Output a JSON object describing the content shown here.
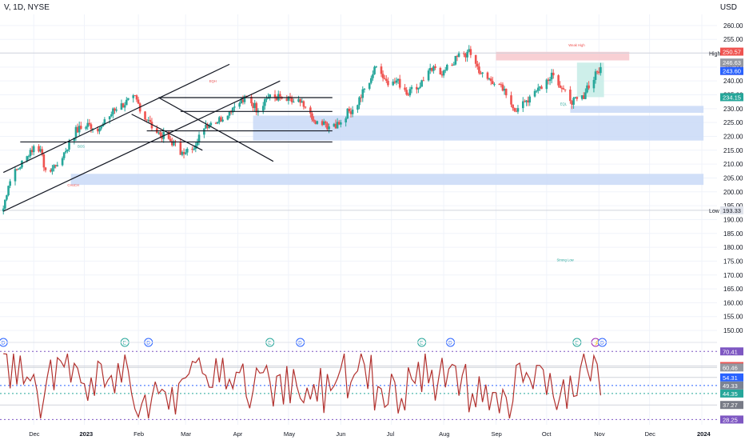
{
  "header": {
    "symbol_label": "V, 1D, NYSE",
    "currency": "USD"
  },
  "colors": {
    "up": "#26a69a",
    "down": "#ef5350",
    "rsi_line": "#b2322f",
    "supply_zone": "#f7c8cc",
    "demand_zone": "#c9d9f7",
    "target_zone": "#c5ece6",
    "high_line": "#d1d4dc",
    "grid": "#f0f3fa"
  },
  "chart_data": {
    "type": "candlestick",
    "price_axis": {
      "range": [
        148,
        264
      ],
      "ticks": [
        150,
        155,
        160,
        165,
        170,
        175,
        180,
        185,
        190,
        195,
        200,
        205,
        210,
        215,
        220,
        225,
        230,
        235,
        240,
        245,
        250,
        255,
        260
      ],
      "tick_labels": [
        "150.00",
        "155.00",
        "160.00",
        "165.00",
        "170.00",
        "175.00",
        "180.00",
        "185.00",
        "190.00",
        "195.00",
        "200.00",
        "205.00",
        "210.00",
        "215.00",
        "220.00",
        "225.00",
        "230.00",
        "235.00",
        "240.00",
        "245.00",
        "250.00",
        "255.00",
        "260.00"
      ]
    },
    "time_axis": {
      "labels": [
        "Dec",
        "2023",
        "Feb",
        "Mar",
        "Apr",
        "May",
        "Jun",
        "Jul",
        "Aug",
        "Sep",
        "Oct",
        "Nov",
        "Dec",
        "2024"
      ],
      "label_days": [
        18,
        48,
        80,
        108,
        139,
        169,
        200,
        230,
        261,
        292,
        322,
        353,
        383,
        414
      ]
    },
    "anchors": {
      "days": [
        0,
        3,
        7,
        13,
        20,
        26,
        35,
        43,
        50,
        58,
        65,
        72,
        78,
        84,
        90,
        100,
        107,
        113,
        119,
        128,
        137,
        145,
        150,
        158,
        168,
        176,
        184,
        191,
        197,
        203,
        209,
        215,
        221,
        226,
        229,
        233,
        240,
        246,
        254,
        261,
        270,
        276,
        285,
        291,
        297,
        303,
        309,
        315,
        319,
        325,
        331,
        337,
        342,
        346,
        350,
        354
      ],
      "closes": [
        194,
        203,
        207,
        212,
        218,
        206,
        213,
        222,
        224,
        223,
        229,
        232,
        234,
        227,
        222,
        218,
        213,
        217,
        224,
        226,
        231,
        234,
        230,
        235,
        233,
        232,
        225,
        224,
        224,
        228,
        231,
        238,
        245,
        241,
        238,
        240,
        236,
        238,
        244,
        243,
        249,
        250,
        241,
        240,
        236,
        230,
        232,
        237,
        238,
        243,
        238,
        233,
        232,
        238,
        241,
        245
      ]
    },
    "levels": [
      {
        "name": "High",
        "price": 250.06,
        "label": "High"
      },
      {
        "name": "Low",
        "price": 193.33,
        "label": "Low"
      }
    ],
    "price_badges": [
      {
        "value": "250.57",
        "price": 250.57,
        "color": "#ef5350"
      },
      {
        "value": "246.63",
        "price": 246.63,
        "color": "#9598a1"
      },
      {
        "value": "243.60",
        "price": 243.6,
        "color": "#ef5350"
      },
      {
        "value": "243.60",
        "price": 243.6,
        "color": "#2962ff"
      },
      {
        "value": "234.15",
        "price": 234.15,
        "color": "#26a69a"
      },
      {
        "value": "193.33",
        "price": 193.33,
        "color": "#e0e3eb"
      }
    ],
    "zones": [
      {
        "type": "supply",
        "from_day": 292,
        "to_day": 371,
        "low": 247.4,
        "high": 250.5
      },
      {
        "type": "target",
        "from_day": 340,
        "to_day": 356,
        "low": 234.15,
        "high": 246.6
      },
      {
        "type": "demand",
        "from_day": 148,
        "to_day": 415,
        "low": 218.5,
        "high": 227.5
      },
      {
        "type": "demand",
        "from_day": 336,
        "to_day": 415,
        "low": 228.5,
        "high": 231.0
      },
      {
        "type": "demand",
        "from_day": 40,
        "to_day": 415,
        "low": 202.5,
        "high": 206.5
      }
    ],
    "annotations": [
      "Weak High",
      "Strong Low",
      "BOS",
      "CHoCH",
      "EQL",
      "EQH"
    ],
    "events": [
      {
        "day": 0,
        "letter": "D"
      },
      {
        "day": 72,
        "letter": "E"
      },
      {
        "day": 86,
        "letter": "D"
      },
      {
        "day": 158,
        "letter": "E"
      },
      {
        "day": 176,
        "letter": "D"
      },
      {
        "day": 248,
        "letter": "E"
      },
      {
        "day": 265,
        "letter": "D"
      },
      {
        "day": 340,
        "letter": "E"
      },
      {
        "day": 351,
        "letter": "⚡"
      },
      {
        "day": 355,
        "letter": "D"
      }
    ],
    "rsi": {
      "range": [
        25,
        74
      ],
      "levels": [
        70.41,
        61.36,
        60.46,
        54.31,
        49.33,
        44.35,
        37.27,
        28.25
      ],
      "badges": [
        {
          "value": "70.41",
          "level": 70.41,
          "color": "#7e57c2"
        },
        {
          "value": "61.36",
          "level": 61.36,
          "color": "#ef5350"
        },
        {
          "value": "60.46",
          "level": 60.46,
          "color": "#9598a1"
        },
        {
          "value": "54.31",
          "level": 54.31,
          "color": "#2962ff"
        },
        {
          "value": "49.33",
          "level": 49.33,
          "color": "#7b8394"
        },
        {
          "value": "44.35",
          "level": 44.35,
          "color": "#26a69a"
        },
        {
          "value": "37.27",
          "level": 37.27,
          "color": "#787b86"
        },
        {
          "value": "28.25",
          "level": 28.25,
          "color": "#7e57c2"
        }
      ]
    }
  }
}
